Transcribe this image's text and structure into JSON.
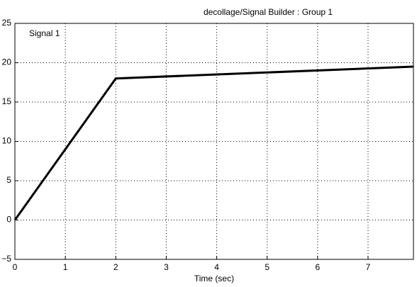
{
  "chart_data": {
    "type": "line",
    "title": "decollage/Signal Builder : Group 1",
    "x_label": "Time (sec)",
    "x": [
      0,
      2,
      7.9
    ],
    "series": [
      {
        "name": "Signal 1",
        "color": "#000000",
        "values": [
          0,
          18,
          19.5
        ]
      }
    ],
    "xlim": [
      0,
      7.9
    ],
    "xticks": [
      0,
      1,
      2,
      3,
      4,
      5,
      6,
      7
    ],
    "ylim": [
      -5,
      25
    ],
    "yticks": [
      {
        "value": -5,
        "label": "−5"
      },
      0,
      5,
      10,
      15,
      20,
      25
    ],
    "grid": true
  }
}
